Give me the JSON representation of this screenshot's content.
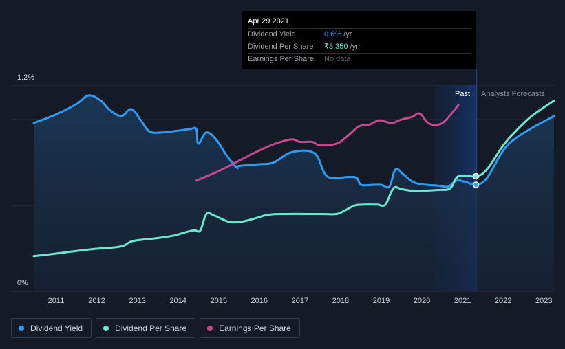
{
  "colors": {
    "dividend_yield": "#2e9cf4",
    "dividend_per_share": "#6de8d0",
    "earnings_per_share": "#c8488f"
  },
  "tooltip": {
    "date": "Apr 29 2021",
    "rows": [
      {
        "name": "Dividend Yield",
        "value": "0.6%",
        "unit": " /yr"
      },
      {
        "name": "Dividend Per Share",
        "value": "₹3.350",
        "unit": " /yr"
      },
      {
        "name": "Earnings Per Share",
        "value": "No data",
        "unit": ""
      }
    ]
  },
  "legend": [
    {
      "label": "Dividend Yield"
    },
    {
      "label": "Dividend Per Share"
    },
    {
      "label": "Earnings Per Share"
    }
  ],
  "chart_data": {
    "type": "line",
    "y_tick_labels": [
      "1.2%",
      "0%"
    ],
    "x_tick_labels": [
      "2011",
      "2012",
      "2013",
      "2014",
      "2015",
      "2016",
      "2017",
      "2018",
      "2019",
      "2020",
      "2021",
      "2022",
      "2023"
    ],
    "x_range": [
      2010.45,
      2023.25
    ],
    "y_range": [
      0,
      1.2
    ],
    "past_label": "Past",
    "forecast_label": "Analysts Forecasts",
    "past_region_start": 2020.3,
    "marker_date": 2021.33,
    "series": [
      {
        "name": "Dividend Yield",
        "key": "dividend_yield",
        "filled": true,
        "points": [
          [
            2010.45,
            0.98
          ],
          [
            2011.0,
            1.03
          ],
          [
            2011.5,
            1.09
          ],
          [
            2011.8,
            1.14
          ],
          [
            2012.1,
            1.11
          ],
          [
            2012.3,
            1.06
          ],
          [
            2012.6,
            1.02
          ],
          [
            2012.85,
            1.06
          ],
          [
            2013.1,
            0.99
          ],
          [
            2013.3,
            0.93
          ],
          [
            2013.6,
            0.925
          ],
          [
            2014.0,
            0.935
          ],
          [
            2014.3,
            0.945
          ],
          [
            2014.45,
            0.945
          ],
          [
            2014.5,
            0.86
          ],
          [
            2014.7,
            0.925
          ],
          [
            2014.95,
            0.88
          ],
          [
            2015.2,
            0.79
          ],
          [
            2015.45,
            0.72
          ],
          [
            2015.5,
            0.73
          ],
          [
            2016.0,
            0.74
          ],
          [
            2016.35,
            0.75
          ],
          [
            2016.8,
            0.81
          ],
          [
            2017.35,
            0.805
          ],
          [
            2017.6,
            0.69
          ],
          [
            2017.8,
            0.66
          ],
          [
            2018.35,
            0.665
          ],
          [
            2018.5,
            0.62
          ],
          [
            2018.8,
            0.62
          ],
          [
            2019.0,
            0.62
          ],
          [
            2019.2,
            0.61
          ],
          [
            2019.35,
            0.71
          ],
          [
            2019.55,
            0.68
          ],
          [
            2019.85,
            0.63
          ],
          [
            2020.4,
            0.615
          ],
          [
            2020.65,
            0.61
          ],
          [
            2020.85,
            0.645
          ],
          [
            2021.1,
            0.635
          ],
          [
            2021.33,
            0.62
          ],
          [
            2021.6,
            0.66
          ],
          [
            2022.0,
            0.82
          ],
          [
            2022.3,
            0.89
          ],
          [
            2022.7,
            0.95
          ],
          [
            2023.25,
            1.02
          ]
        ]
      },
      {
        "name": "Dividend Per Share",
        "key": "dividend_per_share",
        "filled": false,
        "points": [
          [
            2010.45,
            0.205
          ],
          [
            2011.0,
            0.22
          ],
          [
            2011.5,
            0.235
          ],
          [
            2012.0,
            0.248
          ],
          [
            2012.4,
            0.255
          ],
          [
            2012.65,
            0.265
          ],
          [
            2012.85,
            0.29
          ],
          [
            2013.1,
            0.3
          ],
          [
            2013.5,
            0.31
          ],
          [
            2013.9,
            0.325
          ],
          [
            2014.2,
            0.345
          ],
          [
            2014.4,
            0.355
          ],
          [
            2014.55,
            0.355
          ],
          [
            2014.7,
            0.45
          ],
          [
            2014.9,
            0.44
          ],
          [
            2015.25,
            0.405
          ],
          [
            2015.55,
            0.405
          ],
          [
            2015.9,
            0.425
          ],
          [
            2016.2,
            0.445
          ],
          [
            2016.6,
            0.45
          ],
          [
            2017.5,
            0.45
          ],
          [
            2017.9,
            0.45
          ],
          [
            2018.1,
            0.47
          ],
          [
            2018.35,
            0.5
          ],
          [
            2018.6,
            0.505
          ],
          [
            2018.9,
            0.505
          ],
          [
            2019.1,
            0.505
          ],
          [
            2019.3,
            0.6
          ],
          [
            2019.5,
            0.595
          ],
          [
            2019.8,
            0.585
          ],
          [
            2020.4,
            0.59
          ],
          [
            2020.7,
            0.6
          ],
          [
            2020.9,
            0.67
          ],
          [
            2021.33,
            0.67
          ],
          [
            2021.6,
            0.71
          ],
          [
            2022.0,
            0.85
          ],
          [
            2022.3,
            0.93
          ],
          [
            2022.7,
            1.02
          ],
          [
            2023.25,
            1.11
          ]
        ]
      },
      {
        "name": "Earnings Per Share",
        "key": "earnings_per_share",
        "filled": false,
        "points": [
          [
            2014.45,
            0.645
          ],
          [
            2015.0,
            0.7
          ],
          [
            2015.5,
            0.76
          ],
          [
            2016.0,
            0.82
          ],
          [
            2016.4,
            0.86
          ],
          [
            2016.8,
            0.885
          ],
          [
            2017.0,
            0.87
          ],
          [
            2017.3,
            0.87
          ],
          [
            2017.5,
            0.85
          ],
          [
            2017.9,
            0.86
          ],
          [
            2018.15,
            0.9
          ],
          [
            2018.45,
            0.96
          ],
          [
            2018.7,
            0.97
          ],
          [
            2018.95,
            0.995
          ],
          [
            2019.25,
            0.98
          ],
          [
            2019.5,
            1.0
          ],
          [
            2019.75,
            1.015
          ],
          [
            2019.95,
            1.035
          ],
          [
            2020.15,
            0.98
          ],
          [
            2020.4,
            0.97
          ],
          [
            2020.6,
            1.0
          ],
          [
            2020.9,
            1.085
          ]
        ]
      }
    ]
  }
}
